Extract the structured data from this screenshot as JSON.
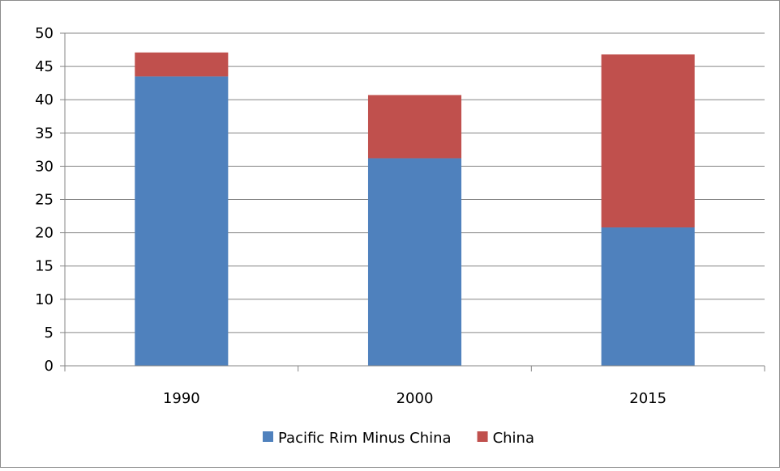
{
  "chart_data": {
    "type": "bar",
    "stacked": true,
    "categories": [
      "1990",
      "2000",
      "2015"
    ],
    "series": [
      {
        "name": "Pacific Rim Minus China",
        "values": [
          43.5,
          31.2,
          20.8
        ],
        "color": "#4F81BD"
      },
      {
        "name": "China",
        "values": [
          3.6,
          9.5,
          26.0
        ],
        "color": "#C0504D"
      }
    ],
    "ylim": [
      0,
      50
    ],
    "yticks": [
      "0",
      "5",
      "10",
      "15",
      "20",
      "25",
      "30",
      "35",
      "40",
      "45",
      "50"
    ],
    "grid": true,
    "legend": "bottom",
    "title": "",
    "xlabel": "",
    "ylabel": ""
  }
}
